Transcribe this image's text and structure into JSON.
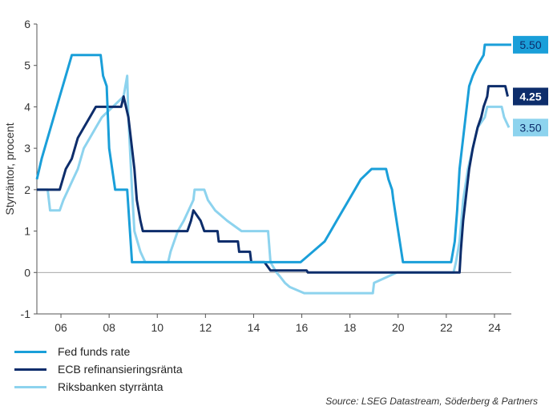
{
  "chart_data": {
    "type": "line",
    "ylabel": "Styrräntor, procent",
    "ylim": [
      -1,
      6
    ],
    "yticks": [
      -1,
      0,
      1,
      2,
      3,
      4,
      5,
      6
    ],
    "xlim": [
      2005.0,
      2024.7
    ],
    "xticks": [
      2006,
      2008,
      2010,
      2012,
      2014,
      2016,
      2018,
      2020,
      2022,
      2024
    ],
    "xtick_labels": [
      "06",
      "08",
      "10",
      "12",
      "14",
      "16",
      "18",
      "20",
      "22",
      "24"
    ],
    "grid": false,
    "legend_position": "bottom-left",
    "series": [
      {
        "name": "Fed funds rate",
        "color": "#1a9fd9",
        "end_label": "5.50",
        "points": [
          [
            2005.0,
            2.25
          ],
          [
            2005.2,
            2.75
          ],
          [
            2005.45,
            3.25
          ],
          [
            2005.7,
            3.75
          ],
          [
            2005.95,
            4.25
          ],
          [
            2006.2,
            4.75
          ],
          [
            2006.45,
            5.25
          ],
          [
            2007.65,
            5.25
          ],
          [
            2007.75,
            4.75
          ],
          [
            2007.9,
            4.5
          ],
          [
            2008.0,
            3.0
          ],
          [
            2008.25,
            2.0
          ],
          [
            2008.75,
            2.0
          ],
          [
            2008.95,
            0.25
          ],
          [
            2015.95,
            0.25
          ],
          [
            2016.95,
            0.75
          ],
          [
            2017.2,
            1.0
          ],
          [
            2017.45,
            1.25
          ],
          [
            2017.7,
            1.5
          ],
          [
            2017.95,
            1.75
          ],
          [
            2018.2,
            2.0
          ],
          [
            2018.45,
            2.25
          ],
          [
            2018.9,
            2.5
          ],
          [
            2019.5,
            2.5
          ],
          [
            2019.6,
            2.25
          ],
          [
            2019.75,
            2.0
          ],
          [
            2019.8,
            1.75
          ],
          [
            2020.2,
            0.25
          ],
          [
            2022.2,
            0.25
          ],
          [
            2022.35,
            0.75
          ],
          [
            2022.45,
            1.5
          ],
          [
            2022.55,
            2.5
          ],
          [
            2022.7,
            3.25
          ],
          [
            2022.85,
            4.0
          ],
          [
            2022.95,
            4.5
          ],
          [
            2023.1,
            4.75
          ],
          [
            2023.3,
            5.0
          ],
          [
            2023.55,
            5.25
          ],
          [
            2023.6,
            5.5
          ],
          [
            2024.7,
            5.5
          ]
        ]
      },
      {
        "name": "ECB refinansieringsränta",
        "color": "#0d2d6b",
        "end_label": "4.25",
        "points": [
          [
            2005.0,
            2.0
          ],
          [
            2005.95,
            2.0
          ],
          [
            2006.2,
            2.5
          ],
          [
            2006.45,
            2.75
          ],
          [
            2006.7,
            3.25
          ],
          [
            2006.95,
            3.5
          ],
          [
            2007.2,
            3.75
          ],
          [
            2007.45,
            4.0
          ],
          [
            2008.5,
            4.0
          ],
          [
            2008.6,
            4.25
          ],
          [
            2008.8,
            3.75
          ],
          [
            2008.9,
            3.25
          ],
          [
            2009.05,
            2.5
          ],
          [
            2009.15,
            1.75
          ],
          [
            2009.3,
            1.25
          ],
          [
            2009.4,
            1.0
          ],
          [
            2011.25,
            1.0
          ],
          [
            2011.4,
            1.25
          ],
          [
            2011.5,
            1.5
          ],
          [
            2011.8,
            1.25
          ],
          [
            2011.95,
            1.0
          ],
          [
            2012.5,
            1.0
          ],
          [
            2012.55,
            0.75
          ],
          [
            2013.35,
            0.75
          ],
          [
            2013.4,
            0.5
          ],
          [
            2013.85,
            0.5
          ],
          [
            2013.9,
            0.25
          ],
          [
            2014.45,
            0.25
          ],
          [
            2014.7,
            0.05
          ],
          [
            2016.2,
            0.05
          ],
          [
            2016.25,
            0.0
          ],
          [
            2022.55,
            0.0
          ],
          [
            2022.6,
            0.5
          ],
          [
            2022.7,
            1.25
          ],
          [
            2022.85,
            2.0
          ],
          [
            2022.95,
            2.5
          ],
          [
            2023.1,
            3.0
          ],
          [
            2023.3,
            3.5
          ],
          [
            2023.45,
            3.75
          ],
          [
            2023.55,
            4.0
          ],
          [
            2023.7,
            4.25
          ],
          [
            2023.75,
            4.5
          ],
          [
            2024.45,
            4.5
          ],
          [
            2024.55,
            4.25
          ]
        ]
      },
      {
        "name": "Riksbanken styrränta",
        "color": "#8dd3ee",
        "end_label": "3.50",
        "points": [
          [
            2005.0,
            2.0
          ],
          [
            2005.45,
            2.0
          ],
          [
            2005.55,
            1.5
          ],
          [
            2005.95,
            1.5
          ],
          [
            2006.1,
            1.75
          ],
          [
            2006.3,
            2.0
          ],
          [
            2006.5,
            2.25
          ],
          [
            2006.7,
            2.5
          ],
          [
            2006.95,
            3.0
          ],
          [
            2007.2,
            3.25
          ],
          [
            2007.45,
            3.5
          ],
          [
            2007.7,
            3.75
          ],
          [
            2008.15,
            4.0
          ],
          [
            2008.6,
            4.25
          ],
          [
            2008.75,
            4.75
          ],
          [
            2008.8,
            3.75
          ],
          [
            2008.95,
            2.0
          ],
          [
            2009.05,
            1.0
          ],
          [
            2009.3,
            0.5
          ],
          [
            2009.5,
            0.25
          ],
          [
            2010.45,
            0.25
          ],
          [
            2010.55,
            0.5
          ],
          [
            2010.7,
            0.75
          ],
          [
            2010.85,
            1.0
          ],
          [
            2011.1,
            1.25
          ],
          [
            2011.3,
            1.5
          ],
          [
            2011.5,
            1.75
          ],
          [
            2011.55,
            2.0
          ],
          [
            2011.95,
            2.0
          ],
          [
            2012.1,
            1.75
          ],
          [
            2012.4,
            1.5
          ],
          [
            2012.9,
            1.25
          ],
          [
            2013.5,
            1.0
          ],
          [
            2014.6,
            1.0
          ],
          [
            2014.7,
            0.25
          ],
          [
            2014.95,
            0.0
          ],
          [
            2015.1,
            -0.1
          ],
          [
            2015.3,
            -0.25
          ],
          [
            2015.5,
            -0.35
          ],
          [
            2016.1,
            -0.5
          ],
          [
            2018.95,
            -0.5
          ],
          [
            2019.0,
            -0.25
          ],
          [
            2019.95,
            0.0
          ],
          [
            2022.3,
            0.0
          ],
          [
            2022.4,
            0.25
          ],
          [
            2022.55,
            0.75
          ],
          [
            2022.7,
            1.75
          ],
          [
            2022.9,
            2.5
          ],
          [
            2023.1,
            3.0
          ],
          [
            2023.3,
            3.5
          ],
          [
            2023.6,
            3.75
          ],
          [
            2023.7,
            4.0
          ],
          [
            2024.3,
            4.0
          ],
          [
            2024.4,
            3.75
          ],
          [
            2024.6,
            3.5
          ]
        ]
      }
    ]
  },
  "source": "Source: LSEG Datastream, Söderberg & Partners"
}
